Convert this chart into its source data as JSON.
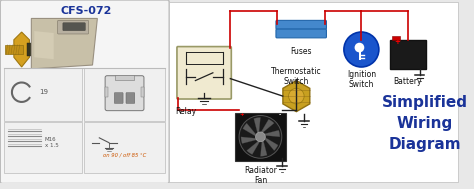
{
  "bg_color": "#e8e8e8",
  "left_panel_bg": "#f5f5f5",
  "left_panel_border": "#bbbbbb",
  "diagram_bg": "#ffffff",
  "title_text": "Simplified\nWiring\nDiagram",
  "title_color": "#1a3399",
  "title_fontsize": 11,
  "part_number": "CFS-072",
  "part_color": "#1a3399",
  "part_fontsize": 8,
  "labels": {
    "fuses": "Fuses",
    "ignition": "Ignition\nSwitch",
    "battery": "Battery",
    "relay": "Relay",
    "thermo": "Thermostatic\nSwitch",
    "fan": "Radiator\nFan"
  },
  "wire_red": "#cc0000",
  "wire_black": "#222222",
  "fuse_color": "#4488cc",
  "relay_bg": "#f0ead0",
  "relay_border": "#999966",
  "ignition_circle": "#1a55cc",
  "label_fontsize": 5.5,
  "small_fontsize": 4.5
}
